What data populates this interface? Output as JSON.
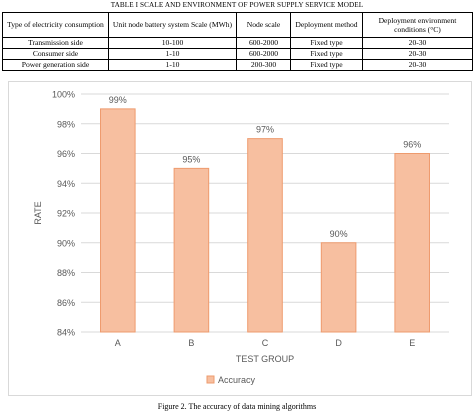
{
  "table": {
    "title": "TABLE I SCALE AND ENVIRONMENT OF POWER SUPPLY SERVICE MODEL",
    "headers": [
      "Type of electricity consumption",
      "Unit node battery system Scale (MWh)",
      "Node scale",
      "Deployment method",
      "Deployment environment conditions (°C)"
    ],
    "rows": [
      [
        "Transmission side",
        "10-100",
        "600-2000",
        "Fixed type",
        "20-30"
      ],
      [
        "Consumer side",
        "1-10",
        "600-2000",
        "Fixed type",
        "20-30"
      ],
      [
        "Power generation side",
        "1-10",
        "200-300",
        "Fixed type",
        "20-30"
      ]
    ]
  },
  "chart_data": {
    "type": "bar",
    "categories": [
      "A",
      "B",
      "C",
      "D",
      "E"
    ],
    "series": [
      {
        "name": "Accuracy",
        "values": [
          99,
          95,
          97,
          90,
          96
        ]
      }
    ],
    "data_labels": [
      "99%",
      "95%",
      "97%",
      "90%",
      "96%"
    ],
    "yticks": [
      "84%",
      "86%",
      "88%",
      "90%",
      "92%",
      "94%",
      "96%",
      "98%",
      "100%"
    ],
    "ylim": [
      84,
      100
    ],
    "xlabel": "TEST GROUP",
    "ylabel": "RATE",
    "grid": true,
    "legend_position": "bottom",
    "colors": {
      "bar_fill": "#f7bfa0",
      "bar_stroke": "#ee9b6e",
      "grid": "#d9d9d9",
      "text": "#595959"
    }
  },
  "figure_caption": "Figure 2. The accuracy of data mining algorithms"
}
